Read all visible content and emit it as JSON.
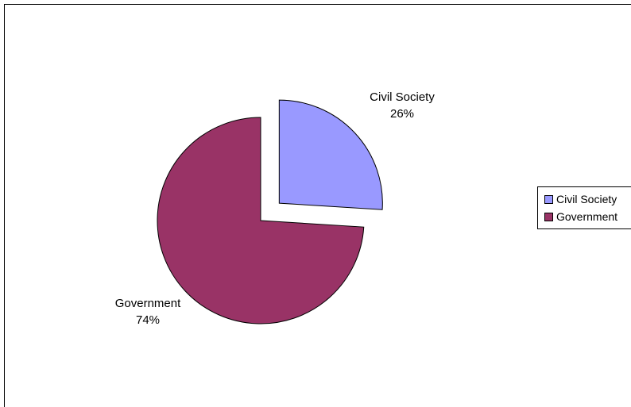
{
  "chart_data": {
    "type": "pie",
    "title": "",
    "slices": [
      {
        "label": "Civil Society",
        "value": 26,
        "value_label": "26%",
        "color": "#9999ff",
        "exploded": true
      },
      {
        "label": "Government",
        "value": 74,
        "value_label": "74%",
        "color": "#993366",
        "exploded": false
      }
    ],
    "legend": {
      "placement": "right",
      "entries": [
        "Civil Society",
        "Government"
      ]
    },
    "start_angle": "12 o'clock",
    "direction": "clockwise"
  }
}
